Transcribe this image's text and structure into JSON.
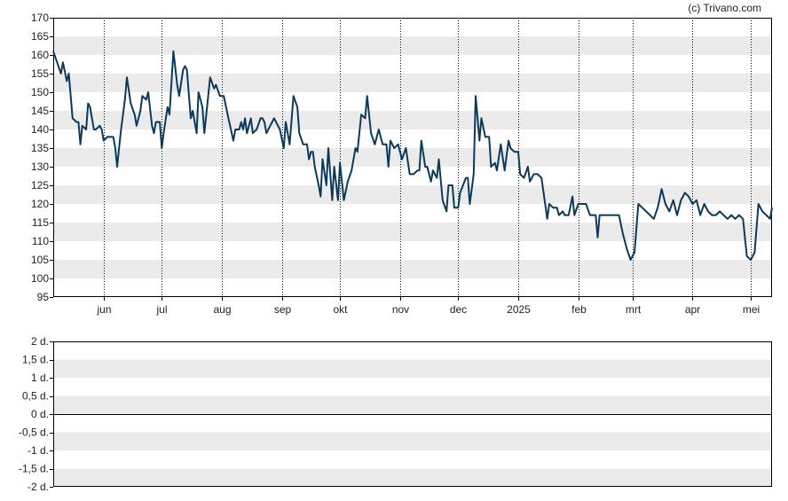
{
  "credit": "(c) Trivano.com",
  "colors": {
    "line": "#0b3a5a",
    "band": "#ebebeb",
    "axis": "#000000",
    "vgrid": "#000000"
  },
  "chart_data": [
    {
      "type": "line",
      "title": "",
      "xlabel": "",
      "ylabel": "",
      "ylim": [
        95,
        170
      ],
      "yticks": [
        95,
        100,
        105,
        110,
        115,
        120,
        125,
        130,
        135,
        140,
        145,
        150,
        155,
        160,
        165,
        170
      ],
      "grid": "alternating horizontal bands, dotted vertical lines at month ticks",
      "xlim": [
        "2024-05-06",
        "2025-05-12"
      ],
      "x_ticks": [
        {
          "date": "2024-06-01",
          "label": "jun"
        },
        {
          "date": "2024-07-01",
          "label": "jul"
        },
        {
          "date": "2024-08-01",
          "label": "aug"
        },
        {
          "date": "2024-09-01",
          "label": "sep"
        },
        {
          "date": "2024-10-01",
          "label": "okt"
        },
        {
          "date": "2024-11-01",
          "label": "nov"
        },
        {
          "date": "2024-12-01",
          "label": "dec"
        },
        {
          "date": "2025-01-01",
          "label": "2025"
        },
        {
          "date": "2025-02-01",
          "label": "feb"
        },
        {
          "date": "2025-03-01",
          "label": "mrt"
        },
        {
          "date": "2025-04-01",
          "label": "apr"
        },
        {
          "date": "2025-05-01",
          "label": "mei"
        }
      ],
      "series": [
        {
          "points": [
            [
              "2024-05-06",
              161
            ],
            [
              "2024-05-08",
              158
            ],
            [
              "2024-05-10",
              155
            ],
            [
              "2024-05-11",
              158
            ],
            [
              "2024-05-13",
              153
            ],
            [
              "2024-05-14",
              155
            ],
            [
              "2024-05-16",
              143
            ],
            [
              "2024-05-18",
              142
            ],
            [
              "2024-05-19",
              142
            ],
            [
              "2024-05-20",
              136
            ],
            [
              "2024-05-21",
              141
            ],
            [
              "2024-05-23",
              140
            ],
            [
              "2024-05-24",
              147
            ],
            [
              "2024-05-25",
              146
            ],
            [
              "2024-05-27",
              140
            ],
            [
              "2024-05-28",
              140
            ],
            [
              "2024-05-30",
              141
            ],
            [
              "2024-05-31",
              140
            ],
            [
              "2024-06-01",
              137
            ],
            [
              "2024-06-03",
              138
            ],
            [
              "2024-06-04",
              138
            ],
            [
              "2024-06-06",
              138
            ],
            [
              "2024-06-07",
              135
            ],
            [
              "2024-06-08",
              130
            ],
            [
              "2024-06-10",
              140
            ],
            [
              "2024-06-12",
              148
            ],
            [
              "2024-06-13",
              154
            ],
            [
              "2024-06-15",
              147
            ],
            [
              "2024-06-17",
              144
            ],
            [
              "2024-06-18",
              141
            ],
            [
              "2024-06-20",
              145
            ],
            [
              "2024-06-21",
              149
            ],
            [
              "2024-06-23",
              148
            ],
            [
              "2024-06-24",
              150
            ],
            [
              "2024-06-26",
              141
            ],
            [
              "2024-06-27",
              139
            ],
            [
              "2024-06-28",
              142
            ],
            [
              "2024-06-30",
              142
            ],
            [
              "2024-07-01",
              135
            ],
            [
              "2024-07-02",
              139
            ],
            [
              "2024-07-04",
              146
            ],
            [
              "2024-07-05",
              144
            ],
            [
              "2024-07-07",
              161
            ],
            [
              "2024-07-09",
              152
            ],
            [
              "2024-07-10",
              149
            ],
            [
              "2024-07-12",
              156
            ],
            [
              "2024-07-13",
              157
            ],
            [
              "2024-07-14",
              156
            ],
            [
              "2024-07-16",
              143
            ],
            [
              "2024-07-17",
              145
            ],
            [
              "2024-07-19",
              139
            ],
            [
              "2024-07-20",
              150
            ],
            [
              "2024-07-22",
              146
            ],
            [
              "2024-07-23",
              139
            ],
            [
              "2024-07-26",
              154
            ],
            [
              "2024-07-28",
              151
            ],
            [
              "2024-07-29",
              152
            ],
            [
              "2024-07-31",
              149
            ],
            [
              "2024-08-02",
              149
            ],
            [
              "2024-08-04",
              144
            ],
            [
              "2024-08-07",
              137
            ],
            [
              "2024-08-08",
              140
            ],
            [
              "2024-08-10",
              140
            ],
            [
              "2024-08-11",
              142
            ],
            [
              "2024-08-12",
              140
            ],
            [
              "2024-08-13",
              143
            ],
            [
              "2024-08-14",
              139
            ],
            [
              "2024-08-16",
              143
            ],
            [
              "2024-08-17",
              139
            ],
            [
              "2024-08-19",
              140
            ],
            [
              "2024-08-21",
              143
            ],
            [
              "2024-08-22",
              143
            ],
            [
              "2024-08-23",
              142
            ],
            [
              "2024-08-24",
              139
            ],
            [
              "2024-08-26",
              141
            ],
            [
              "2024-08-28",
              143
            ],
            [
              "2024-08-29",
              142
            ],
            [
              "2024-08-31",
              140
            ],
            [
              "2024-09-02",
              135
            ],
            [
              "2024-09-03",
              142
            ],
            [
              "2024-09-05",
              136
            ],
            [
              "2024-09-07",
              149
            ],
            [
              "2024-09-09",
              146
            ],
            [
              "2024-09-10",
              139
            ],
            [
              "2024-09-12",
              136
            ],
            [
              "2024-09-14",
              136
            ],
            [
              "2024-09-15",
              132
            ],
            [
              "2024-09-16",
              134
            ],
            [
              "2024-09-17",
              134
            ],
            [
              "2024-09-18",
              130
            ],
            [
              "2024-09-20",
              125
            ],
            [
              "2024-09-21",
              122
            ],
            [
              "2024-09-22",
              132
            ],
            [
              "2024-09-24",
              125
            ],
            [
              "2024-09-25",
              135
            ],
            [
              "2024-09-27",
              121
            ],
            [
              "2024-09-28",
              130
            ],
            [
              "2024-09-30",
              121
            ],
            [
              "2024-10-01",
              131
            ],
            [
              "2024-10-03",
              121
            ],
            [
              "2024-10-05",
              126
            ],
            [
              "2024-10-07",
              129
            ],
            [
              "2024-10-09",
              135
            ],
            [
              "2024-10-10",
              134
            ],
            [
              "2024-10-12",
              144
            ],
            [
              "2024-10-14",
              143
            ],
            [
              "2024-10-15",
              149
            ],
            [
              "2024-10-17",
              139
            ],
            [
              "2024-10-19",
              136
            ],
            [
              "2024-10-21",
              140
            ],
            [
              "2024-10-23",
              136
            ],
            [
              "2024-10-25",
              136
            ],
            [
              "2024-10-26",
              130
            ],
            [
              "2024-10-27",
              137
            ],
            [
              "2024-10-29",
              135
            ],
            [
              "2024-10-31",
              136
            ],
            [
              "2024-11-02",
              132
            ],
            [
              "2024-11-04",
              135
            ],
            [
              "2024-11-06",
              128
            ],
            [
              "2024-11-08",
              128
            ],
            [
              "2024-11-10",
              129
            ],
            [
              "2024-11-11",
              129
            ],
            [
              "2024-11-12",
              137
            ],
            [
              "2024-11-14",
              130
            ],
            [
              "2024-11-15",
              130
            ],
            [
              "2024-11-17",
              126
            ],
            [
              "2024-11-18",
              129
            ],
            [
              "2024-11-20",
              127
            ],
            [
              "2024-11-21",
              132
            ],
            [
              "2024-11-23",
              121
            ],
            [
              "2024-11-25",
              118
            ],
            [
              "2024-11-26",
              125
            ],
            [
              "2024-11-28",
              125
            ],
            [
              "2024-11-29",
              119
            ],
            [
              "2024-12-01",
              119
            ],
            [
              "2024-12-02",
              123
            ],
            [
              "2024-12-05",
              127
            ],
            [
              "2024-12-06",
              127
            ],
            [
              "2024-12-07",
              120
            ],
            [
              "2024-12-09",
              128
            ],
            [
              "2024-12-10",
              149
            ],
            [
              "2024-12-12",
              137
            ],
            [
              "2024-12-13",
              143
            ],
            [
              "2024-12-15",
              138
            ],
            [
              "2024-12-17",
              138
            ],
            [
              "2024-12-18",
              130
            ],
            [
              "2024-12-20",
              131
            ],
            [
              "2024-12-21",
              129
            ],
            [
              "2024-12-23",
              136
            ],
            [
              "2024-12-25",
              129
            ],
            [
              "2024-12-27",
              137
            ],
            [
              "2024-12-28",
              135
            ],
            [
              "2024-12-30",
              134
            ],
            [
              "2025-01-01",
              134
            ],
            [
              "2025-01-02",
              128
            ],
            [
              "2025-01-04",
              127
            ],
            [
              "2025-01-06",
              130
            ],
            [
              "2025-01-07",
              126
            ],
            [
              "2025-01-09",
              128
            ],
            [
              "2025-01-11",
              128
            ],
            [
              "2025-01-13",
              127
            ],
            [
              "2025-01-16",
              116
            ],
            [
              "2025-01-17",
              120
            ],
            [
              "2025-01-19",
              119
            ],
            [
              "2025-01-21",
              119
            ],
            [
              "2025-01-22",
              117
            ],
            [
              "2025-01-24",
              118
            ],
            [
              "2025-01-25",
              117
            ],
            [
              "2025-01-27",
              117
            ],
            [
              "2025-01-29",
              122
            ],
            [
              "2025-01-30",
              117
            ],
            [
              "2025-02-01",
              120
            ],
            [
              "2025-02-03",
              120
            ],
            [
              "2025-02-05",
              120
            ],
            [
              "2025-02-07",
              117
            ],
            [
              "2025-02-08",
              117
            ],
            [
              "2025-02-10",
              117
            ],
            [
              "2025-02-11",
              111
            ],
            [
              "2025-02-12",
              117
            ],
            [
              "2025-02-14",
              117
            ],
            [
              "2025-02-16",
              117
            ],
            [
              "2025-02-18",
              117
            ],
            [
              "2025-02-20",
              117
            ],
            [
              "2025-02-22",
              117
            ],
            [
              "2025-02-24",
              112
            ],
            [
              "2025-02-26",
              108
            ],
            [
              "2025-02-28",
              105
            ],
            [
              "2025-03-02",
              107
            ],
            [
              "2025-03-04",
              120
            ],
            [
              "2025-03-06",
              119
            ],
            [
              "2025-03-08",
              118
            ],
            [
              "2025-03-10",
              117
            ],
            [
              "2025-03-12",
              116
            ],
            [
              "2025-03-14",
              119
            ],
            [
              "2025-03-16",
              124
            ],
            [
              "2025-03-18",
              120
            ],
            [
              "2025-03-20",
              118
            ],
            [
              "2025-03-22",
              121
            ],
            [
              "2025-03-24",
              117
            ],
            [
              "2025-03-26",
              121
            ],
            [
              "2025-03-28",
              123
            ],
            [
              "2025-03-30",
              122
            ],
            [
              "2025-04-01",
              120
            ],
            [
              "2025-04-03",
              121
            ],
            [
              "2025-04-05",
              117
            ],
            [
              "2025-04-07",
              120
            ],
            [
              "2025-04-09",
              118
            ],
            [
              "2025-04-11",
              117
            ],
            [
              "2025-04-13",
              117
            ],
            [
              "2025-04-15",
              118
            ],
            [
              "2025-04-17",
              117
            ],
            [
              "2025-04-19",
              116
            ],
            [
              "2025-04-21",
              117
            ],
            [
              "2025-04-23",
              116
            ],
            [
              "2025-04-25",
              117
            ],
            [
              "2025-04-27",
              116
            ],
            [
              "2025-04-29",
              106
            ],
            [
              "2025-05-01",
              105
            ],
            [
              "2025-05-03",
              107
            ],
            [
              "2025-05-05",
              120
            ],
            [
              "2025-05-07",
              118
            ],
            [
              "2025-05-09",
              117
            ],
            [
              "2025-05-11",
              116
            ],
            [
              "2025-05-12",
              119
            ]
          ]
        }
      ]
    },
    {
      "type": "line",
      "title": "",
      "xlabel": "",
      "ylabel": "",
      "ylim": [
        -2,
        2
      ],
      "yticks": [
        "2 d.",
        "1,5 d.",
        "1 d.",
        "0,5 d.",
        "0 d.",
        "-0,5 d.",
        "-1 d.",
        "-1,5 d.",
        "-2 d."
      ],
      "ytick_values": [
        2,
        1.5,
        1,
        0.5,
        0,
        -0.5,
        -1,
        -1.5,
        -2
      ],
      "grid": "alternating horizontal bands, baseline at 0",
      "series": []
    }
  ]
}
